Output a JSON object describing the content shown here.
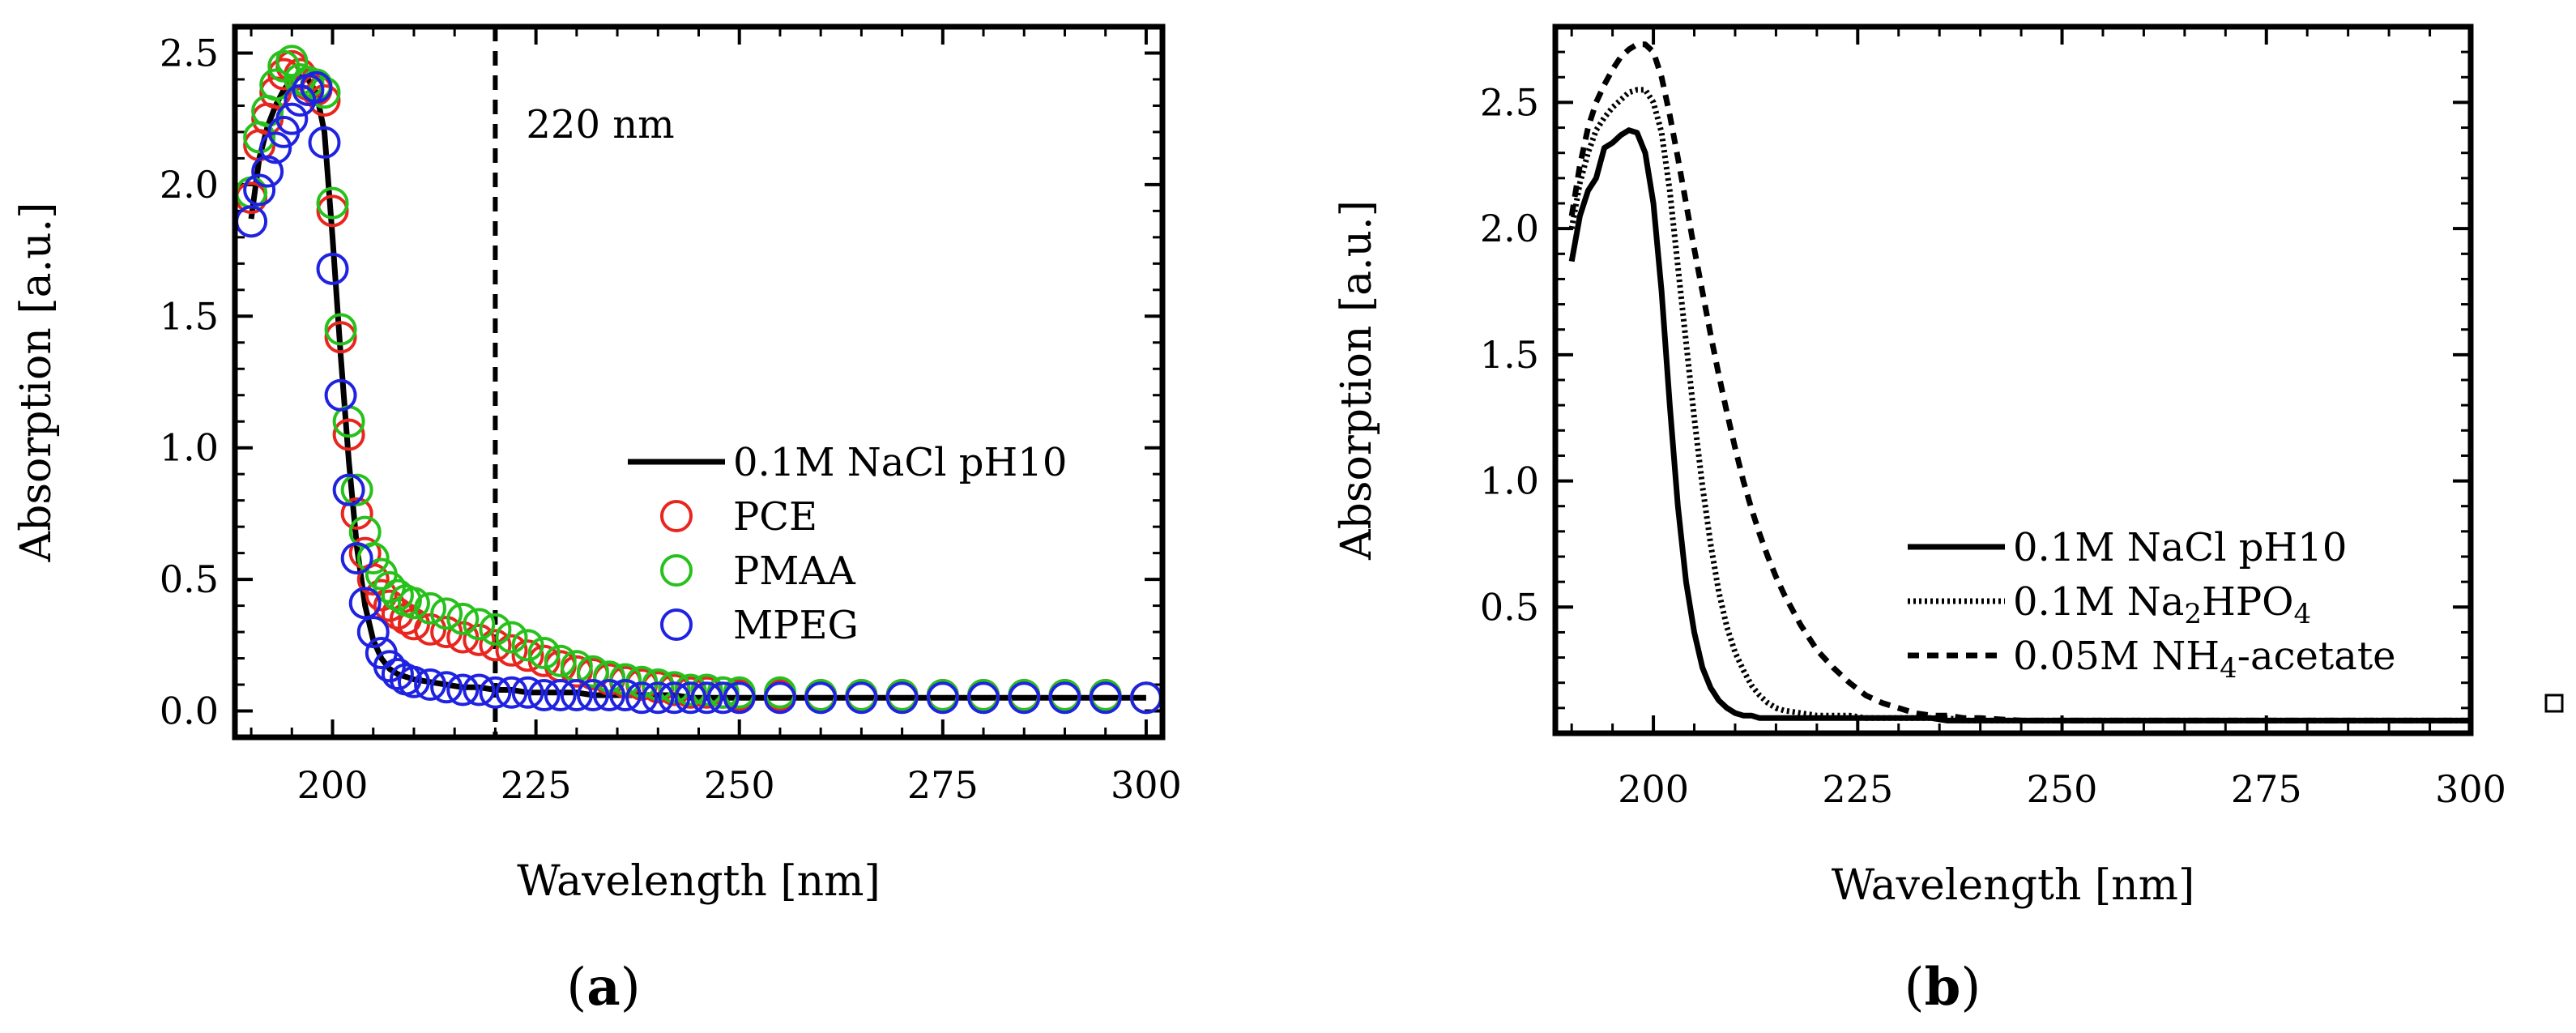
{
  "chart_data": [
    {
      "panel_label": "a",
      "type": "line",
      "title": "",
      "xlabel": "Wavelength [nm]",
      "ylabel": "Absorption [a.u.]",
      "xlim": [
        188,
        302
      ],
      "ylim": [
        -0.1,
        2.6
      ],
      "xticks": [
        200,
        225,
        250,
        275,
        300
      ],
      "yticks": [
        0.0,
        0.5,
        1.0,
        1.5,
        2.0,
        2.5
      ],
      "grid": false,
      "legend_position": "center-right",
      "annotation": {
        "text": "220 nm",
        "x": 220
      },
      "x": [
        190,
        191,
        192,
        193,
        194,
        195,
        196,
        197,
        198,
        199,
        200,
        201,
        202,
        203,
        204,
        205,
        206,
        207,
        208,
        209,
        210,
        212,
        214,
        216,
        218,
        220,
        222,
        224,
        226,
        228,
        230,
        232,
        234,
        236,
        238,
        240,
        242,
        244,
        246,
        248,
        250,
        255,
        260,
        265,
        270,
        275,
        280,
        285,
        290,
        295,
        300
      ],
      "series": [
        {
          "name": "0.1M NaCl pH10",
          "style": "line",
          "color": "#000000",
          "values": [
            1.87,
            2.1,
            2.22,
            2.3,
            2.36,
            2.4,
            2.41,
            2.4,
            2.35,
            2.2,
            1.8,
            1.35,
            0.95,
            0.62,
            0.4,
            0.27,
            0.2,
            0.16,
            0.14,
            0.13,
            0.12,
            0.11,
            0.1,
            0.09,
            0.09,
            0.08,
            0.08,
            0.07,
            0.07,
            0.07,
            0.07,
            0.06,
            0.06,
            0.06,
            0.06,
            0.06,
            0.06,
            0.05,
            0.05,
            0.05,
            0.05,
            0.05,
            0.05,
            0.05,
            0.05,
            0.05,
            0.05,
            0.05,
            0.05,
            0.05,
            0.05
          ]
        },
        {
          "name": "PCE",
          "style": "circle",
          "color": "#e8251f",
          "values": [
            1.95,
            2.15,
            2.25,
            2.35,
            2.42,
            2.45,
            2.42,
            2.38,
            2.36,
            2.32,
            1.9,
            1.42,
            1.05,
            0.75,
            0.6,
            0.5,
            0.44,
            0.4,
            0.37,
            0.35,
            0.33,
            0.31,
            0.3,
            0.28,
            0.27,
            0.25,
            0.23,
            0.21,
            0.19,
            0.17,
            0.15,
            0.14,
            0.12,
            0.11,
            0.1,
            0.09,
            0.08,
            0.07,
            0.07,
            0.07,
            0.06,
            0.06,
            0.06,
            0.06,
            0.06,
            0.06,
            0.06,
            0.06,
            0.06,
            0.06,
            0.05
          ]
        },
        {
          "name": "PMAA",
          "style": "circle",
          "color": "#27c11b",
          "values": [
            1.97,
            2.18,
            2.28,
            2.38,
            2.45,
            2.47,
            2.4,
            2.39,
            2.38,
            2.35,
            1.93,
            1.45,
            1.1,
            0.84,
            0.68,
            0.58,
            0.52,
            0.47,
            0.44,
            0.42,
            0.41,
            0.39,
            0.37,
            0.35,
            0.33,
            0.31,
            0.28,
            0.25,
            0.22,
            0.19,
            0.17,
            0.15,
            0.13,
            0.12,
            0.11,
            0.1,
            0.09,
            0.08,
            0.08,
            0.07,
            0.07,
            0.07,
            0.06,
            0.06,
            0.06,
            0.06,
            0.06,
            0.06,
            0.06,
            0.06,
            0.05
          ]
        },
        {
          "name": "MPEG",
          "style": "circle",
          "color": "#1f22e0",
          "values": [
            1.86,
            1.98,
            2.05,
            2.14,
            2.2,
            2.25,
            2.32,
            2.36,
            2.37,
            2.16,
            1.68,
            1.2,
            0.84,
            0.58,
            0.41,
            0.3,
            0.22,
            0.17,
            0.14,
            0.12,
            0.11,
            0.1,
            0.09,
            0.08,
            0.08,
            0.07,
            0.07,
            0.07,
            0.06,
            0.06,
            0.06,
            0.06,
            0.06,
            0.06,
            0.05,
            0.05,
            0.05,
            0.05,
            0.05,
            0.05,
            0.05,
            0.05,
            0.05,
            0.05,
            0.05,
            0.05,
            0.05,
            0.05,
            0.05,
            0.05,
            0.05
          ]
        }
      ]
    },
    {
      "panel_label": "b",
      "type": "line",
      "title": "",
      "xlabel": "Wavelength [nm]",
      "ylabel": "Absorption [a.u.]",
      "xlim": [
        188,
        300
      ],
      "ylim": [
        0.0,
        2.8
      ],
      "xticks": [
        200,
        225,
        250,
        275,
        300
      ],
      "yticks": [
        0.5,
        1.0,
        1.5,
        2.0,
        2.5
      ],
      "grid": false,
      "legend_position": "lower-right",
      "x": [
        190,
        191,
        192,
        193,
        194,
        195,
        196,
        197,
        198,
        199,
        200,
        201,
        202,
        203,
        204,
        205,
        206,
        207,
        208,
        209,
        210,
        211,
        212,
        213,
        214,
        215,
        216,
        218,
        220,
        222,
        224,
        226,
        228,
        230,
        232,
        234,
        236,
        238,
        240,
        245,
        250,
        260,
        270,
        280,
        290,
        300
      ],
      "series": [
        {
          "name": "0.1M NaCl pH10",
          "style": "solid",
          "color": "#000000",
          "values": [
            1.87,
            2.05,
            2.15,
            2.2,
            2.32,
            2.34,
            2.37,
            2.39,
            2.38,
            2.3,
            2.1,
            1.75,
            1.3,
            0.9,
            0.6,
            0.4,
            0.26,
            0.18,
            0.13,
            0.1,
            0.08,
            0.07,
            0.07,
            0.06,
            0.06,
            0.06,
            0.06,
            0.06,
            0.06,
            0.06,
            0.06,
            0.06,
            0.06,
            0.06,
            0.06,
            0.06,
            0.05,
            0.05,
            0.05,
            0.05,
            0.05,
            0.05,
            0.05,
            0.05,
            0.05,
            0.05
          ]
        },
        {
          "name": "0.1M Na₂HPO₄",
          "style": "dotted",
          "color": "#000000",
          "values": [
            2.0,
            2.18,
            2.3,
            2.39,
            2.44,
            2.48,
            2.51,
            2.54,
            2.55,
            2.55,
            2.5,
            2.38,
            2.15,
            1.85,
            1.55,
            1.25,
            0.98,
            0.75,
            0.56,
            0.42,
            0.32,
            0.25,
            0.19,
            0.15,
            0.12,
            0.1,
            0.09,
            0.08,
            0.07,
            0.07,
            0.07,
            0.06,
            0.06,
            0.06,
            0.06,
            0.06,
            0.06,
            0.05,
            0.05,
            0.05,
            0.05,
            0.05,
            0.05,
            0.05,
            0.05,
            0.05
          ]
        },
        {
          "name": "0.05M NH₄-acetate",
          "style": "dashed",
          "color": "#000000",
          "values": [
            2.05,
            2.25,
            2.4,
            2.5,
            2.57,
            2.63,
            2.68,
            2.71,
            2.73,
            2.73,
            2.7,
            2.6,
            2.45,
            2.28,
            2.1,
            1.92,
            1.75,
            1.58,
            1.42,
            1.27,
            1.13,
            1.0,
            0.89,
            0.79,
            0.7,
            0.62,
            0.55,
            0.43,
            0.33,
            0.26,
            0.2,
            0.15,
            0.12,
            0.1,
            0.08,
            0.07,
            0.07,
            0.06,
            0.06,
            0.05,
            0.05,
            0.05,
            0.05,
            0.05,
            0.05,
            0.05
          ]
        }
      ]
    }
  ]
}
